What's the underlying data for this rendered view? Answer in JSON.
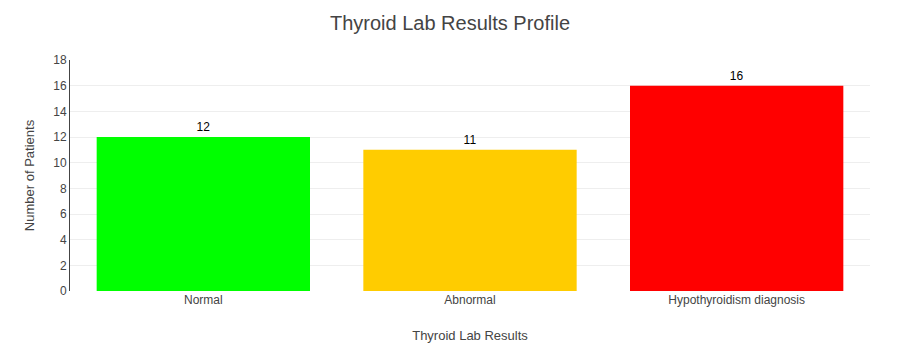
{
  "chart_data": {
    "type": "bar",
    "title": "Thyroid Lab Results Profile",
    "xlabel": "Thyroid Lab Results",
    "ylabel": "Number of Patients",
    "categories": [
      "Normal",
      "Abnormal",
      "Hypothyroidism diagnosis"
    ],
    "values": [
      12,
      11,
      16
    ],
    "colors": [
      "#00ff00",
      "#ffcc00",
      "#ff0000"
    ],
    "ylim": [
      0,
      18
    ],
    "yticks": [
      0,
      2,
      4,
      6,
      8,
      10,
      12,
      14,
      16,
      18
    ],
    "grid": true,
    "data_labels": true
  }
}
